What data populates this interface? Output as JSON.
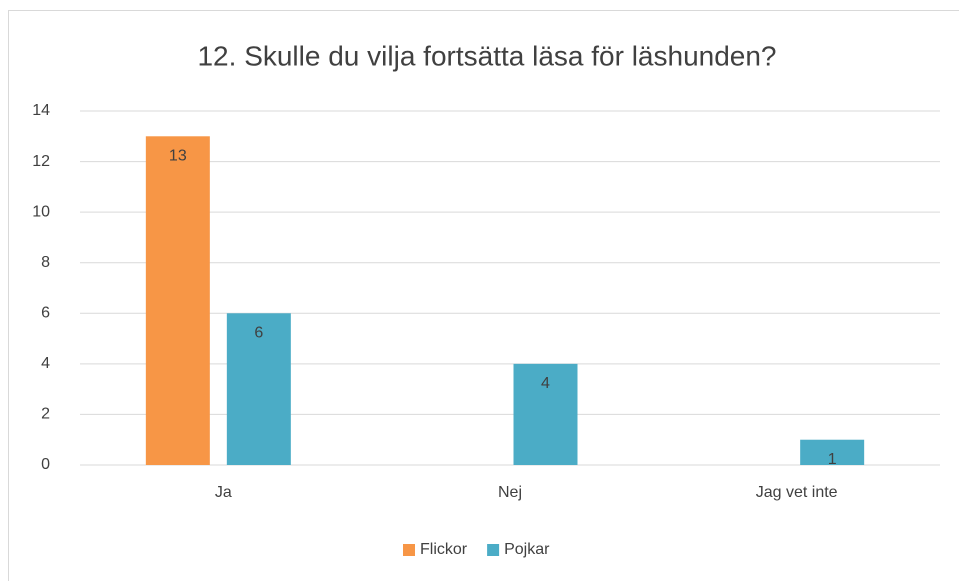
{
  "chart_data": {
    "type": "bar",
    "title": "12. Skulle du vilja fortsätta läsa för läshunden?",
    "categories": [
      "Ja",
      "Nej",
      "Jag vet inte"
    ],
    "series": [
      {
        "name": "Flickor",
        "color": "#f79646",
        "values": [
          13,
          null,
          null
        ]
      },
      {
        "name": "Pojkar",
        "color": "#4bacc6",
        "values": [
          6,
          4,
          1
        ]
      }
    ],
    "ylim": [
      0,
      14
    ],
    "yticks": [
      0,
      2,
      4,
      6,
      8,
      10,
      12,
      14
    ],
    "grid": true,
    "legend": "bottom"
  }
}
